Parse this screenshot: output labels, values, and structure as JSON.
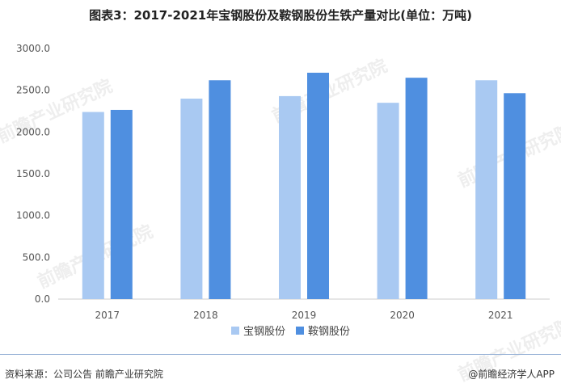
{
  "title": "图表3：2017-2021年宝钢股份及鞍钢股份生铁产量对比(单位：万吨)",
  "watermark": "前瞻产业研究院",
  "footer": {
    "source": "资料来源：公司公告 前瞻产业研究院",
    "brand": "@前瞻经济学人APP"
  },
  "colors": {
    "baosteel": "#a9c9f2",
    "angang": "#4f8fe0",
    "axis": "#cccccc"
  },
  "chart_data": {
    "type": "bar",
    "categories": [
      "2017",
      "2018",
      "2019",
      "2020",
      "2021"
    ],
    "series": [
      {
        "name": "宝钢股份",
        "values": [
          2240,
          2400,
          2430,
          2350,
          2620
        ]
      },
      {
        "name": "鞍钢股份",
        "values": [
          2265,
          2620,
          2710,
          2650,
          2465
        ]
      }
    ],
    "yticks": [
      "0.0",
      "500.0",
      "1000.0",
      "1500.0",
      "2000.0",
      "2500.0",
      "3000.0"
    ],
    "ylim": [
      0,
      3000
    ],
    "grid": false,
    "legend_position": "bottom"
  }
}
